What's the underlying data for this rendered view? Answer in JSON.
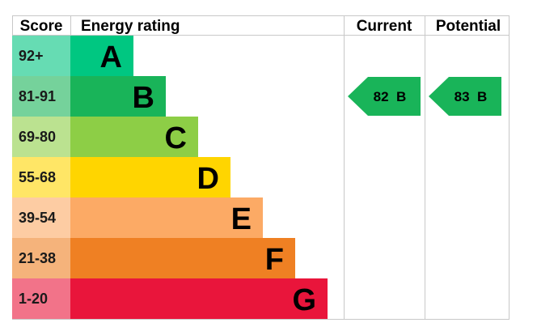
{
  "headers": {
    "score": "Score",
    "rating": "Energy rating",
    "current": "Current",
    "potential": "Potential"
  },
  "chart_data": {
    "type": "bar",
    "bands": [
      {
        "score": "92+",
        "letter": "A",
        "color": "#00c781",
        "score_color": "#66dcb3"
      },
      {
        "score": "81-91",
        "letter": "B",
        "color": "#19b459",
        "score_color": "#75d29b"
      },
      {
        "score": "69-80",
        "letter": "C",
        "color": "#8dce46",
        "score_color": "#bbe290"
      },
      {
        "score": "55-68",
        "letter": "D",
        "color": "#ffd500",
        "score_color": "#ffe666"
      },
      {
        "score": "39-54",
        "letter": "E",
        "color": "#fcaa65",
        "score_color": "#fdcca3"
      },
      {
        "score": "21-38",
        "letter": "F",
        "color": "#ef8023",
        "score_color": "#f5b37b"
      },
      {
        "score": "1-20",
        "letter": "G",
        "color": "#e9153b",
        "score_color": "#f27389"
      }
    ],
    "current": {
      "value": 82,
      "letter": "B",
      "label": "82  B",
      "color": "#19b459"
    },
    "potential": {
      "value": 83,
      "letter": "B",
      "label": "83  B",
      "color": "#19b459"
    }
  }
}
